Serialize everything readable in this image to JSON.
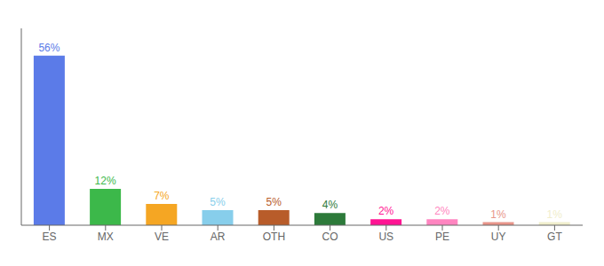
{
  "chart_data": {
    "type": "bar",
    "categories": [
      "ES",
      "MX",
      "VE",
      "AR",
      "OTH",
      "CO",
      "US",
      "PE",
      "UY",
      "GT"
    ],
    "values": [
      56,
      12,
      7,
      5,
      5,
      4,
      2,
      2,
      1,
      1
    ],
    "value_labels": [
      "56%",
      "12%",
      "7%",
      "5%",
      "5%",
      "4%",
      "2%",
      "2%",
      "1%",
      "1%"
    ],
    "colors": [
      "#5b7be8",
      "#3cb84a",
      "#f5a623",
      "#87ceeb",
      "#b85c2a",
      "#2d7a3a",
      "#ff1493",
      "#ff85c0",
      "#e8958a",
      "#f0eecc"
    ],
    "ylim": [
      0,
      65
    ],
    "data_labels": true,
    "tick_labels": "x"
  }
}
